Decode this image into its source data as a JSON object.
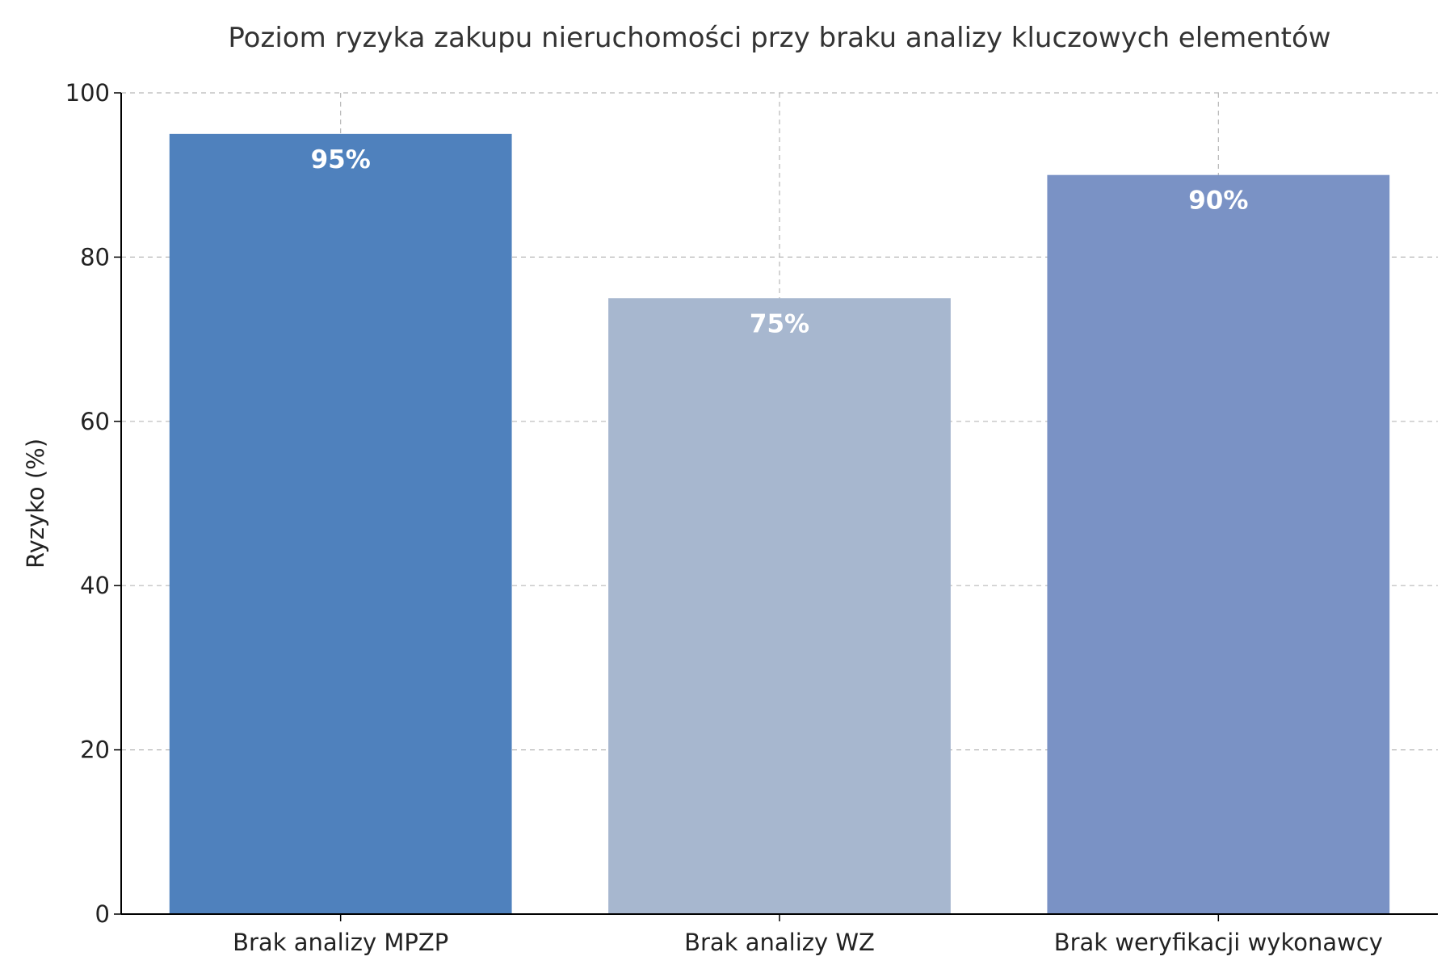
{
  "chart_data": {
    "type": "bar",
    "title": "Poziom ryzyka zakupu nieruchomości przy braku analizy kluczowych elementów",
    "xlabel": "",
    "ylabel": "Ryzyko (%)",
    "categories": [
      "Brak analizy MPZP",
      "Brak analizy WZ",
      "Brak weryfikacji wykonawcy"
    ],
    "values": [
      95,
      75,
      90
    ],
    "data_labels": [
      "95%",
      "75%",
      "90%"
    ],
    "colors": [
      "#4f81bd",
      "#a7b7cf",
      "#7a92c5"
    ],
    "ylim": [
      0,
      100
    ],
    "yticks": [
      0,
      20,
      40,
      60,
      80,
      100
    ],
    "grid": true,
    "legend": "none"
  }
}
